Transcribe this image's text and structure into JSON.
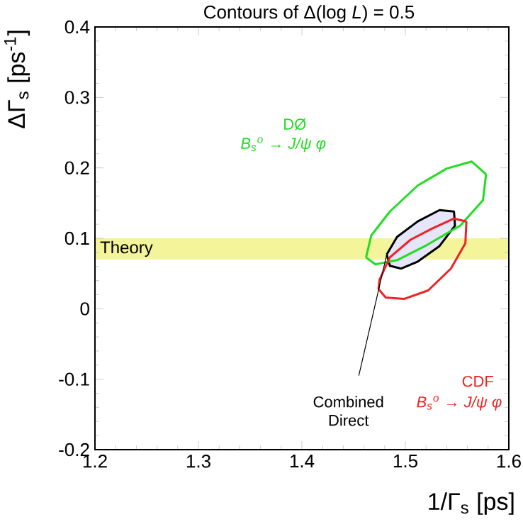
{
  "chart_data": {
    "type": "line",
    "title": "Contours of Δ(log *L*) = 0.5",
    "xlabel": "1/Γ$_{s}$  [ps]",
    "ylabel": "ΔΓ$_{s}$ [ps$^{-1}$]",
    "xlim": [
      1.2,
      1.6
    ],
    "ylim": [
      -0.2,
      0.4
    ],
    "xticks": [
      1.2,
      1.3,
      1.4,
      1.5,
      1.6
    ],
    "yticks": [
      -0.2,
      -0.1,
      0,
      0.1,
      0.2,
      0.3,
      0.4
    ],
    "bands": [
      {
        "axis": "y",
        "from": 0.07,
        "to": 0.1,
        "label": "Theory",
        "color": "#f4f59a"
      }
    ],
    "series": [
      {
        "name": "DØ",
        "color": "#22dd22",
        "x": [
          1.462,
          1.467,
          1.485,
          1.512,
          1.54,
          1.564,
          1.578
        ],
        "values": [
          0.073,
          0.104,
          0.138,
          0.175,
          0.199,
          0.209,
          0.191
        ]
      },
      {
        "color": "#22dd22",
        "x": [
          1.462,
          1.471,
          1.492,
          1.519,
          1.553,
          1.575,
          1.578
        ],
        "values": [
          0.073,
          0.063,
          0.069,
          0.089,
          0.118,
          0.154,
          0.191
        ]
      },
      {
        "name": "CDF",
        "color": "#ee2222",
        "x": [
          1.474,
          1.475,
          1.485,
          1.505,
          1.526,
          1.547,
          1.559
        ],
        "values": [
          0.028,
          0.041,
          0.073,
          0.098,
          0.114,
          0.128,
          0.124
        ]
      },
      {
        "color": "#ee2222",
        "x": [
          1.474,
          1.481,
          1.499,
          1.522,
          1.544,
          1.558,
          1.559
        ],
        "values": [
          0.028,
          0.016,
          0.014,
          0.026,
          0.057,
          0.093,
          0.124
        ]
      },
      {
        "name": "Combined Direct",
        "type": "area",
        "color": "#000000",
        "x": [
          1.482,
          1.492,
          1.512,
          1.533,
          1.547,
          1.548,
          1.533,
          1.512,
          1.496,
          1.485,
          1.482
        ],
        "values": [
          0.077,
          0.102,
          0.124,
          0.14,
          0.138,
          0.118,
          0.089,
          0.067,
          0.057,
          0.061,
          0.077
        ]
      }
    ],
    "annotations": [
      "B$_{s}$$^{o}$ → J/ψ φ",
      "B$_{s}$$^{o}$ → J/ψ φ"
    ]
  }
}
